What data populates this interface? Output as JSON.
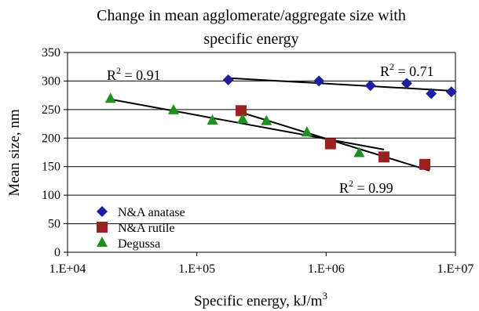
{
  "chart_data": {
    "type": "scatter",
    "title_line1": "Change in mean agglomerate/aggregate size with",
    "title_line2": "specific energy",
    "xlabel_main": "Specific energy, kJ/m",
    "xlabel_sup": "3",
    "ylabel": "Mean size, nm",
    "x_scale": "log",
    "xlim": [
      10000,
      10000000
    ],
    "ylim": [
      0,
      350
    ],
    "x_ticks": [
      10000,
      100000,
      1000000,
      10000000
    ],
    "x_tick_labels": [
      "1.E+04",
      "1.E+05",
      "1.E+06",
      "1.E+07"
    ],
    "y_ticks": [
      0,
      50,
      100,
      150,
      200,
      250,
      300,
      350
    ],
    "y_tick_labels": [
      "0",
      "50",
      "100",
      "150",
      "200",
      "250",
      "300",
      "350"
    ],
    "grid": "horizontal",
    "legend_position": "bottom-left",
    "series": [
      {
        "name": "N&A anatase",
        "marker": "diamond",
        "color": "#1f1f9e",
        "points": [
          [
            175000,
            302
          ],
          [
            880000,
            300
          ],
          [
            2200000,
            292
          ],
          [
            4200000,
            296
          ],
          [
            6500000,
            278
          ],
          [
            9300000,
            281
          ]
        ],
        "trendline": {
          "x": [
            180000,
            9300000
          ],
          "y": [
            305,
            283
          ]
        },
        "r2_base": "R",
        "r2_sup": "2",
        "r2_value": " = 0.71"
      },
      {
        "name": "N&A rutile",
        "marker": "square",
        "color": "#9e1f1f",
        "points": [
          [
            220000,
            248
          ],
          [
            1080000,
            190
          ],
          [
            2800000,
            167
          ],
          [
            5800000,
            154
          ]
        ],
        "trendline": {
          "x": [
            220000,
            6300000
          ],
          "y": [
            245,
            143
          ]
        },
        "r2_base": "R",
        "r2_sup": "2",
        "r2_value": " = 0.99"
      },
      {
        "name": "Degussa",
        "marker": "triangle",
        "color": "#1f8f1f",
        "points": [
          [
            21500,
            270
          ],
          [
            66000,
            250
          ],
          [
            132000,
            232
          ],
          [
            226000,
            234
          ],
          [
            345000,
            231
          ],
          [
            710000,
            211
          ],
          [
            1800000,
            175
          ]
        ],
        "trendline": {
          "x": [
            21500,
            2800000
          ],
          "y": [
            268,
            180
          ]
        },
        "r2_base": "R",
        "r2_sup": "2",
        "r2_value": " = 0.91"
      }
    ]
  }
}
